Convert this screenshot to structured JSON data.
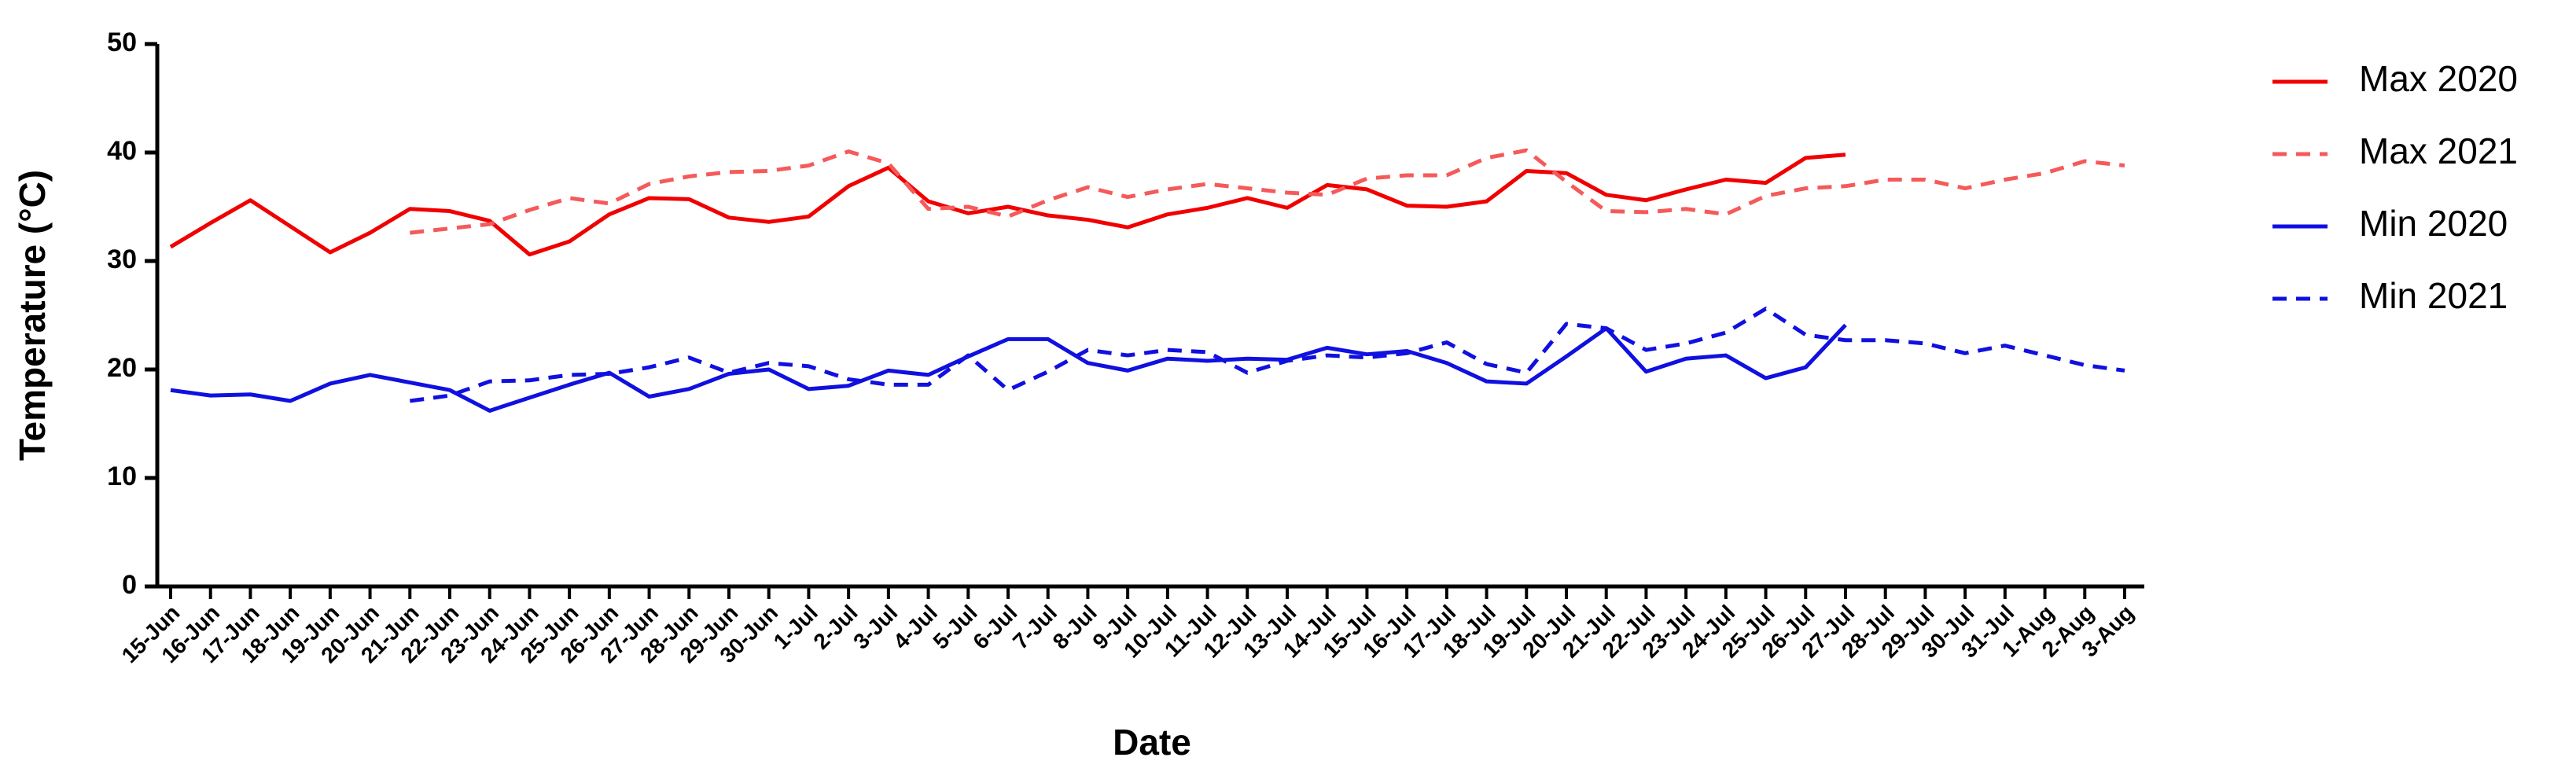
{
  "chart_data": {
    "type": "line",
    "x_label": "Date",
    "y_label": "Temperature (°C)",
    "categories": [
      "15-Jun",
      "16-Jun",
      "17-Jun",
      "18-Jun",
      "19-Jun",
      "20-Jun",
      "21-Jun",
      "22-Jun",
      "23-Jun",
      "24-Jun",
      "25-Jun",
      "26-Jun",
      "27-Jun",
      "28-Jun",
      "29-Jun",
      "30-Jun",
      "1-Jul",
      "2-Jul",
      "3-Jul",
      "4-Jul",
      "5-Jul",
      "6-Jul",
      "7-Jul",
      "8-Jul",
      "9-Jul",
      "10-Jul",
      "11-Jul",
      "12-Jul",
      "13-Jul",
      "14-Jul",
      "15-Jul",
      "16-Jul",
      "17-Jul",
      "18-Jul",
      "19-Jul",
      "20-Jul",
      "21-Jul",
      "22-Jul",
      "23-Jul",
      "24-Jul",
      "25-Jul",
      "26-Jul",
      "27-Jul",
      "28-Jul",
      "29-Jul",
      "30-Jul",
      "31-Jul",
      "1-Aug",
      "2-Aug",
      "3-Aug"
    ],
    "series": [
      {
        "name": "Max 2020",
        "color": "#f00000",
        "dashed": false,
        "values": [
          31.3,
          33.5,
          35.6,
          33.2,
          30.8,
          32.6,
          34.8,
          34.6,
          33.7,
          30.6,
          31.8,
          34.3,
          35.8,
          35.7,
          34.0,
          33.6,
          34.1,
          36.9,
          38.6,
          35.5,
          34.4,
          35.0,
          34.2,
          33.8,
          33.1,
          34.3,
          34.9,
          35.8,
          34.9,
          37.0,
          36.6,
          35.1,
          35.0,
          35.5,
          38.3,
          38.1,
          36.1,
          35.6,
          36.6,
          37.5,
          37.2,
          39.5,
          39.8,
          null,
          null,
          null,
          null,
          null,
          null,
          null
        ]
      },
      {
        "name": "Max 2021",
        "color": "#f55a5a",
        "dashed": true,
        "values": [
          null,
          null,
          null,
          null,
          null,
          null,
          32.6,
          33.0,
          33.4,
          34.7,
          35.8,
          35.3,
          37.1,
          37.8,
          38.2,
          38.3,
          38.8,
          40.1,
          39.0,
          34.8,
          35.0,
          34.1,
          35.6,
          36.8,
          35.9,
          36.6,
          37.1,
          36.7,
          36.3,
          36.1,
          37.6,
          37.9,
          37.9,
          39.5,
          40.2,
          37.3,
          34.6,
          34.5,
          34.8,
          34.3,
          36.0,
          36.7,
          36.9,
          37.5,
          37.5,
          36.7,
          37.5,
          38.1,
          39.2,
          38.8
        ]
      },
      {
        "name": "Min 2020",
        "color": "#1010e0",
        "dashed": false,
        "values": [
          18.1,
          17.6,
          17.7,
          17.1,
          18.7,
          19.5,
          18.8,
          18.1,
          16.2,
          17.4,
          18.6,
          19.7,
          17.5,
          18.2,
          19.6,
          20.0,
          18.2,
          18.5,
          19.9,
          19.5,
          21.2,
          22.8,
          22.8,
          20.6,
          19.9,
          21.0,
          20.8,
          21.0,
          20.9,
          22.0,
          21.4,
          21.7,
          20.6,
          18.9,
          18.7,
          21.2,
          23.8,
          19.8,
          21.0,
          21.3,
          19.2,
          20.2,
          24.1,
          null,
          null,
          null,
          null,
          null,
          null,
          null
        ]
      },
      {
        "name": "Min 2021",
        "color": "#1010e0",
        "dashed": true,
        "values": [
          null,
          null,
          null,
          null,
          null,
          null,
          17.1,
          17.6,
          18.9,
          19.0,
          19.5,
          19.6,
          20.2,
          21.1,
          19.7,
          20.6,
          20.3,
          19.1,
          18.6,
          18.6,
          21.3,
          18.1,
          19.8,
          21.8,
          21.3,
          21.8,
          21.6,
          19.7,
          20.8,
          21.3,
          21.1,
          21.5,
          22.5,
          20.5,
          19.7,
          24.2,
          23.8,
          21.8,
          22.4,
          23.4,
          25.6,
          23.2,
          22.7,
          22.7,
          22.4,
          21.5,
          22.2,
          21.3,
          20.4,
          19.9
        ]
      }
    ],
    "ylim": [
      0,
      50
    ],
    "yticks": [
      0,
      10,
      20,
      30,
      40,
      50
    ],
    "grid": false,
    "legend": "right"
  }
}
